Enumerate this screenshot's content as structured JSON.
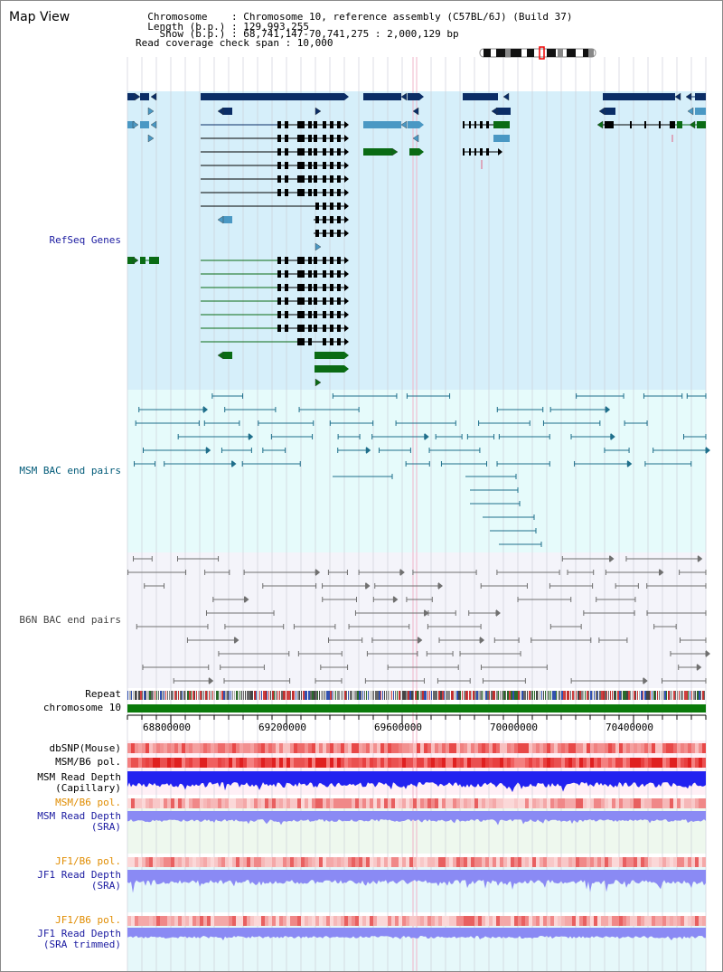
{
  "header": {
    "title": "Map View",
    "info_lines": [
      "  Chromosome    : Chromosome 10, reference assembly (C57BL/6J) (Build 37)",
      "  Length (b.p.) : 129,993,255",
      "    Show (b.p.) : 68,741,147-70,741,275 : 2,000,129 bp",
      "Read coverage check span : 10,000"
    ]
  },
  "tracks": {
    "refseq": "RefSeq Genes",
    "msm_bac": "MSM BAC end pairs",
    "b6n_bac": "B6N BAC end pairs",
    "repeat": "Repeat",
    "chromosome": "chromosome 10",
    "dbsnp": "dbSNP(Mouse)",
    "msm_b6_pol": "MSM/B6 pol.",
    "msm_read_depth_cap": "MSM Read Depth\n(Capillary)",
    "msm_b6_pol_2": "MSM/B6 pol.",
    "msm_read_depth_sra": "MSM Read Depth\n(SRA)",
    "jf1_b6_pol": "JF1/B6 pol.",
    "jf1_read_depth_sra": "JF1 Read Depth\n(SRA)",
    "jf1_b6_pol_2": "JF1/B6 pol.",
    "jf1_read_depth_trim": "JF1 Read Depth\n(SRA trimmed)"
  },
  "axis": {
    "ticks": [
      "68800000",
      "69200000",
      "69600000",
      "70000000",
      "70400000"
    ]
  },
  "colors": {
    "refseq_bg": "#d6effa",
    "msm_bg": "#e6fbfb",
    "b6n_bg": "#f4f4fa",
    "gene_navy": "#0b2d66",
    "gene_light": "#4a98c4",
    "gene_green": "#0a6b14",
    "msm_line": "#1f6f8b",
    "b6n_line": "#707070",
    "chromosome_green": "#0a7a0a",
    "depth_blue": "#2222f0",
    "depth_light": "#8a8af4"
  }
}
